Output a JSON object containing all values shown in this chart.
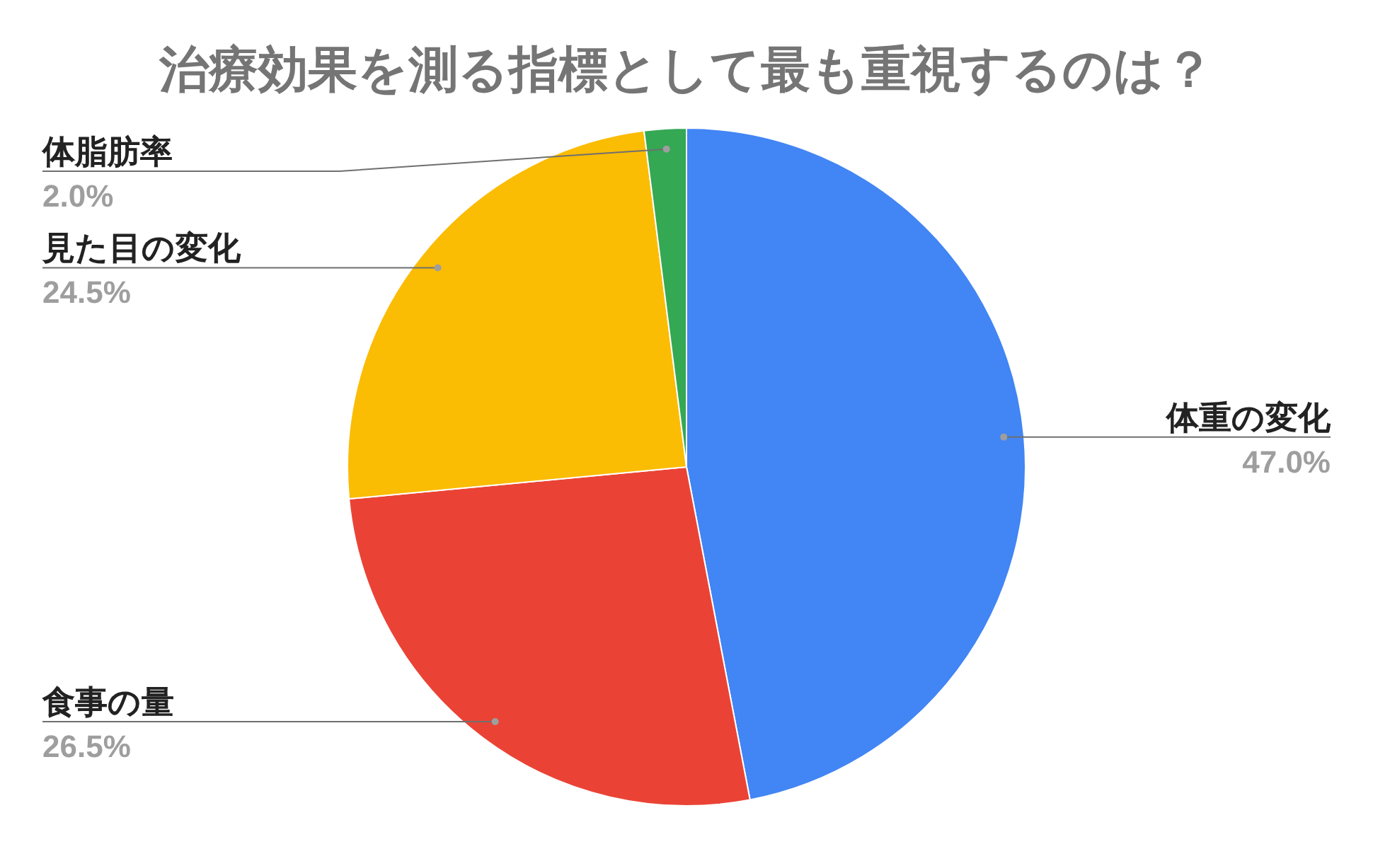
{
  "chart_data": {
    "type": "pie",
    "title": "治療効果を測る指標として最も重視するのは？",
    "categories": [
      "体重の変化",
      "食事の量",
      "見た目の変化",
      "体脂肪率"
    ],
    "values": [
      47.0,
      26.5,
      24.5,
      2.0
    ],
    "colors": [
      "#4285f4",
      "#ea4335",
      "#fbbc04",
      "#34a853"
    ],
    "value_labels": [
      "47.0%",
      "26.5%",
      "24.5%",
      "2.0%"
    ]
  }
}
